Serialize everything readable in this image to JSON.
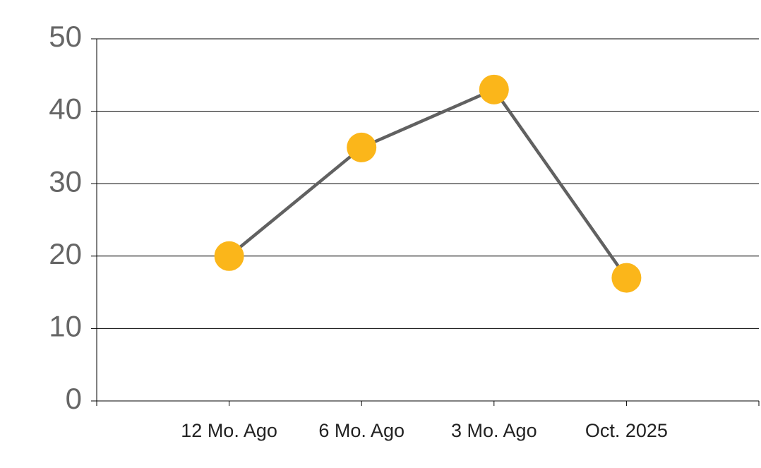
{
  "chart_data": {
    "type": "line",
    "categories": [
      "12 Mo. Ago",
      "6 Mo. Ago",
      "3 Mo. Ago",
      "Oct. 2025"
    ],
    "values": [
      20,
      35,
      43,
      17
    ],
    "line_color": "#616161",
    "marker_color": "#fbb61a",
    "ylim": [
      0,
      50
    ],
    "yticks": [
      0,
      10,
      20,
      30,
      40,
      50
    ],
    "grid": true
  }
}
